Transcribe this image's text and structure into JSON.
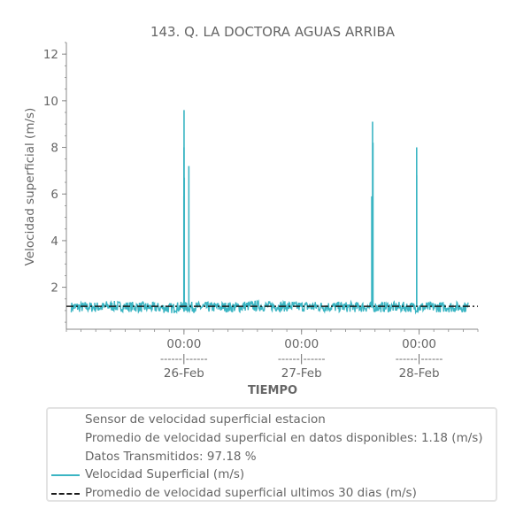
{
  "colors": {
    "series": "#3bb5c3",
    "average": "#1a1a1a",
    "text": "#666666",
    "axis": "#888888"
  },
  "chart_data": {
    "type": "line",
    "title": "143. Q. LA DOCTORA AGUAS ARRIBA",
    "xlabel": "TIEMPO",
    "ylabel": "Velocidad superficial (m/s)",
    "ylim": [
      0.2,
      12.5
    ],
    "yticks": [
      2,
      4,
      6,
      8,
      10,
      12
    ],
    "xlim_days": [
      "2025-02-25 00:00",
      "2025-02-28 12:00"
    ],
    "xticks": [
      {
        "time": "00:00",
        "sep": "------|------",
        "date": "26-Feb",
        "at": "2025-02-26 00:00"
      },
      {
        "time": "00:00",
        "sep": "------|------",
        "date": "27-Feb",
        "at": "2025-02-27 00:00"
      },
      {
        "time": "00:00",
        "sep": "------|------",
        "date": "28-Feb",
        "at": "2025-02-28 00:00"
      }
    ],
    "grid": false,
    "legend_placement": "below",
    "series": [
      {
        "name": "Velocidad Superficial (m/s)",
        "baseline_range": [
          0.85,
          1.65
        ],
        "points": [
          [
            "2025-02-25 08:00",
            1.2
          ],
          [
            "2025-02-25 22:00",
            1.1
          ],
          [
            "2025-02-25 23:59",
            5.9
          ],
          [
            "2025-02-26 00:00",
            8.0
          ],
          [
            "2025-02-26 00:01",
            9.6
          ],
          [
            "2025-02-26 00:04",
            6.7
          ],
          [
            "2025-02-26 01:00",
            7.2
          ],
          [
            "2025-02-26 12:00",
            1.2
          ],
          [
            "2025-02-27 12:00",
            1.15
          ],
          [
            "2025-02-27 14:20",
            5.9
          ],
          [
            "2025-02-27 14:30",
            9.1
          ],
          [
            "2025-02-27 14:35",
            8.2
          ],
          [
            "2025-02-27 23:30",
            8.0
          ],
          [
            "2025-02-27 23:30",
            6.8
          ],
          [
            "2025-02-28 10:00",
            1.45
          ]
        ]
      },
      {
        "name": "Promedio de velocidad superficial ultimos 30 dias (m/s)",
        "value": 1.18
      }
    ]
  },
  "legend": {
    "info_lines": [
      "Sensor de velocidad superficial estacion",
      "Promedio de velocidad superficial en datos disponibles: 1.18 (m/s)",
      "Datos Transmitidos: 97.18 %"
    ],
    "series_label": "Velocidad Superficial (m/s)",
    "average_label": "Promedio de velocidad superficial ultimos 30 dias (m/s)"
  }
}
